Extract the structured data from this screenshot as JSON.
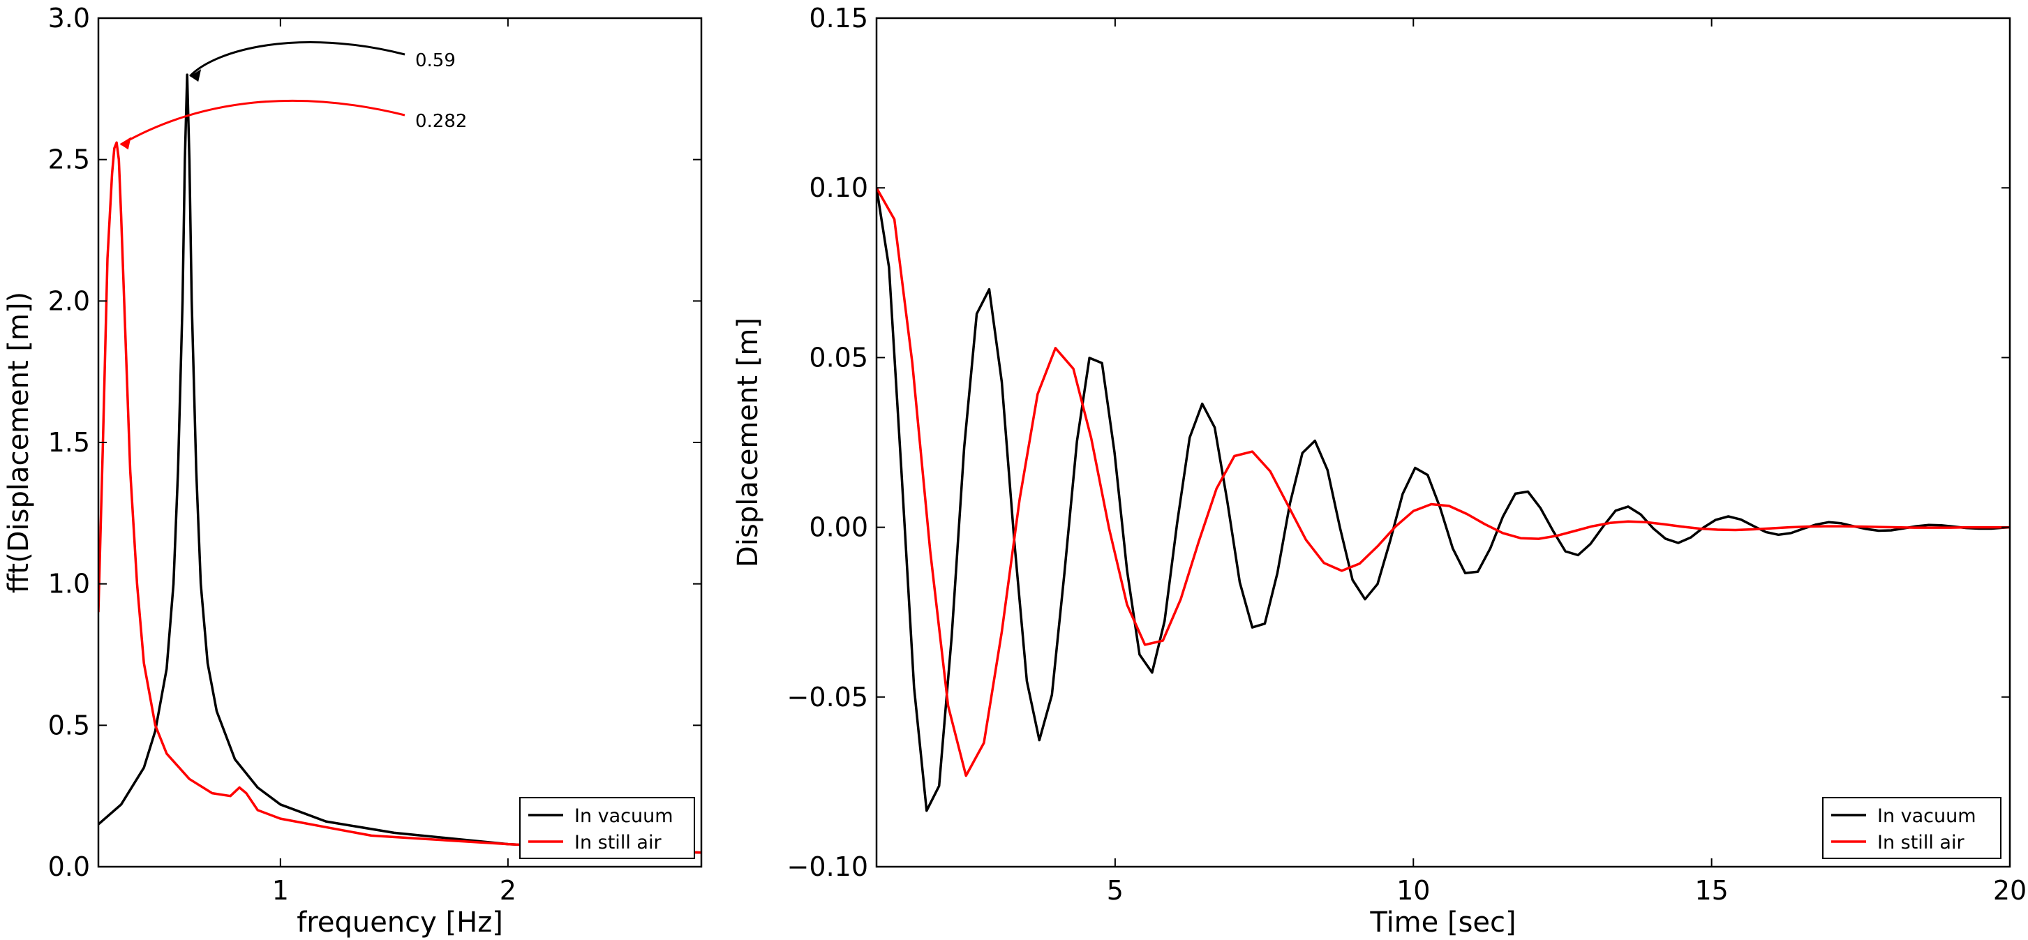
{
  "chart_data": [
    {
      "type": "line",
      "title": "",
      "xlabel": "frequency [Hz]",
      "ylabel": "fft(Displacement [m])",
      "xlim": [
        0.2,
        2.85
      ],
      "ylim": [
        0.0,
        3.0
      ],
      "xticks": [
        1,
        2
      ],
      "xtick_labels": [
        "1",
        "2"
      ],
      "yticks": [
        0.0,
        0.5,
        1.0,
        1.5,
        2.0,
        2.5,
        3.0
      ],
      "ytick_labels": [
        "0.0",
        "0.5",
        "1.0",
        "1.5",
        "2.0",
        "2.5",
        "3.0"
      ],
      "grid": false,
      "legend_position": "lower-right",
      "series": [
        {
          "name": "In vacuum",
          "color": "#000000",
          "x": [
            0.2,
            0.3,
            0.4,
            0.45,
            0.5,
            0.53,
            0.55,
            0.57,
            0.58,
            0.59,
            0.6,
            0.61,
            0.63,
            0.65,
            0.68,
            0.72,
            0.8,
            0.9,
            1.0,
            1.2,
            1.5,
            2.0,
            2.5,
            2.85
          ],
          "y": [
            0.15,
            0.22,
            0.35,
            0.48,
            0.7,
            1.0,
            1.4,
            2.0,
            2.5,
            2.8,
            2.5,
            2.0,
            1.4,
            1.0,
            0.72,
            0.55,
            0.38,
            0.28,
            0.22,
            0.16,
            0.12,
            0.08,
            0.06,
            0.05
          ]
        },
        {
          "name": "In still air",
          "color": "#ff0000",
          "x": [
            0.2,
            0.22,
            0.24,
            0.26,
            0.27,
            0.28,
            0.29,
            0.3,
            0.32,
            0.34,
            0.37,
            0.4,
            0.45,
            0.5,
            0.6,
            0.7,
            0.78,
            0.82,
            0.85,
            0.9,
            1.0,
            1.2,
            1.4,
            1.6,
            2.0,
            2.5,
            2.85
          ],
          "y": [
            0.9,
            1.5,
            2.15,
            2.45,
            2.54,
            2.56,
            2.5,
            2.3,
            1.85,
            1.4,
            1.0,
            0.72,
            0.5,
            0.4,
            0.31,
            0.26,
            0.25,
            0.28,
            0.26,
            0.2,
            0.17,
            0.14,
            0.11,
            0.1,
            0.08,
            0.06,
            0.05
          ]
        }
      ],
      "annotations": [
        {
          "text": "0.59",
          "x": 0.59,
          "y": 2.8,
          "color": "#000000"
        },
        {
          "text": "0.282",
          "x": 0.282,
          "y": 2.56,
          "color": "#ff0000"
        }
      ]
    },
    {
      "type": "line",
      "title": "",
      "xlabel": "Time [sec]",
      "ylabel": "Displacement [m]",
      "xlim": [
        1,
        20
      ],
      "ylim": [
        -0.1,
        0.15
      ],
      "xticks": [
        5,
        10,
        15,
        20
      ],
      "xtick_labels": [
        "5",
        "10",
        "15",
        "20"
      ],
      "yticks": [
        -0.1,
        -0.05,
        0.0,
        0.05,
        0.1,
        0.15
      ],
      "ytick_labels": [
        "−0.10",
        "−0.05",
        "0.00",
        "0.05",
        "0.10",
        "0.15"
      ],
      "grid": false,
      "legend_position": "lower-right",
      "series": [
        {
          "name": "In vacuum",
          "color": "#000000",
          "x": [
            1.0,
            1.21,
            1.42,
            1.63,
            1.84,
            2.05,
            2.26,
            2.47,
            2.68,
            2.89,
            3.1,
            3.31,
            3.52,
            3.73,
            3.94,
            4.15,
            4.36,
            4.57,
            4.78,
            4.99,
            5.2,
            5.41,
            5.62,
            5.83,
            6.04,
            6.25,
            6.46,
            6.67,
            6.88,
            7.09,
            7.3,
            7.51,
            7.72,
            7.93,
            8.14,
            8.35,
            8.56,
            8.77,
            8.98,
            9.19,
            9.4,
            9.61,
            9.82,
            10.03,
            10.24,
            10.45,
            10.66,
            10.87,
            11.08,
            11.29,
            11.5,
            11.71,
            11.92,
            12.13,
            12.34,
            12.55,
            12.76,
            12.97,
            13.18,
            13.39,
            13.6,
            13.81,
            14.02,
            14.23,
            14.44,
            14.65,
            14.86,
            15.07,
            15.28,
            15.49,
            15.7,
            15.91,
            16.12,
            16.33,
            16.54,
            16.75,
            16.96,
            17.17,
            17.38,
            17.59,
            17.8,
            18.01,
            18.22,
            18.43,
            18.64,
            18.85,
            19.06,
            19.27,
            19.48,
            19.69,
            19.9,
            20.0
          ],
          "y": [
            0.1,
            0.0766,
            0.0159,
            -0.0472,
            -0.0835,
            -0.0762,
            -0.0322,
            0.0235,
            0.0629,
            0.0701,
            0.0428,
            -0.004,
            -0.0453,
            -0.0627,
            -0.0494,
            -0.0136,
            0.0253,
            0.0499,
            0.0484,
            0.0221,
            -0.0127,
            -0.0375,
            -0.0428,
            -0.0276,
            0.0013,
            0.0264,
            0.0364,
            0.0294,
            0.0077,
            -0.0162,
            -0.0295,
            -0.0284,
            -0.0135,
            0.0069,
            0.0219,
            0.0255,
            0.0169,
            -0.0001,
            -0.0155,
            -0.0212,
            -0.0167,
            -0.0041,
            0.0098,
            0.0175,
            0.0154,
            0.0057,
            -0.0062,
            -0.0135,
            -0.0131,
            -0.0062,
            0.0031,
            0.0099,
            0.0105,
            0.0057,
            -0.001,
            -0.0071,
            -0.0082,
            -0.0049,
            0.0002,
            0.0049,
            0.0061,
            0.0038,
            -0.0003,
            -0.0034,
            -0.0046,
            -0.003,
            -0.0001,
            0.0022,
            0.0032,
            0.0023,
            0.0004,
            -0.0014,
            -0.0022,
            -0.0017,
            -0.0004,
            0.0008,
            0.0015,
            0.0012,
            0.0003,
            -0.0005,
            -0.001,
            -0.0009,
            -0.0003,
            0.0003,
            0.0007,
            0.0006,
            0.0002,
            -0.0002,
            -0.0004,
            -0.0004,
            -0.0001,
            0.0
          ]
        },
        {
          "name": "In still air",
          "color": "#ff0000",
          "x": [
            1.0,
            1.3,
            1.6,
            1.9,
            2.2,
            2.5,
            2.8,
            3.1,
            3.4,
            3.7,
            4.0,
            4.3,
            4.6,
            4.9,
            5.2,
            5.5,
            5.8,
            6.1,
            6.4,
            6.7,
            7.0,
            7.3,
            7.6,
            7.9,
            8.2,
            8.5,
            8.8,
            9.1,
            9.4,
            9.7,
            10.0,
            10.3,
            10.6,
            10.9,
            11.2,
            11.5,
            11.8,
            12.1,
            12.4,
            12.7,
            13.0,
            13.3,
            13.6,
            13.9,
            14.2,
            14.5,
            14.8,
            15.1,
            15.4,
            15.7,
            16.0,
            16.3,
            16.6,
            16.9,
            17.2,
            17.5,
            17.8,
            18.1,
            18.4,
            18.7,
            19.0,
            19.3,
            19.6,
            20.0
          ],
          "y": [
            0.1,
            0.0907,
            0.0484,
            -0.0069,
            -0.0526,
            -0.0732,
            -0.0635,
            -0.0308,
            0.0083,
            0.0392,
            0.0528,
            0.0467,
            0.0262,
            -0.0004,
            -0.0228,
            -0.0346,
            -0.0334,
            -0.0212,
            -0.0043,
            0.0114,
            0.021,
            0.0223,
            0.0165,
            0.0064,
            -0.0037,
            -0.0105,
            -0.0128,
            -0.0107,
            -0.0056,
            0.0002,
            0.0048,
            0.0068,
            0.0063,
            0.0039,
            0.0009,
            -0.0017,
            -0.0032,
            -0.0034,
            -0.0025,
            -0.0011,
            0.0003,
            0.0013,
            0.0017,
            0.0015,
            0.0009,
            0.0002,
            -0.0004,
            -0.0007,
            -0.0008,
            -0.0006,
            -0.0003,
            0.0,
            0.0002,
            0.0003,
            0.0003,
            0.0002,
            0.0001,
            0.0,
            -0.0001,
            -0.0001,
            -0.0001,
            0.0,
            0.0,
            0.0
          ]
        }
      ]
    }
  ]
}
